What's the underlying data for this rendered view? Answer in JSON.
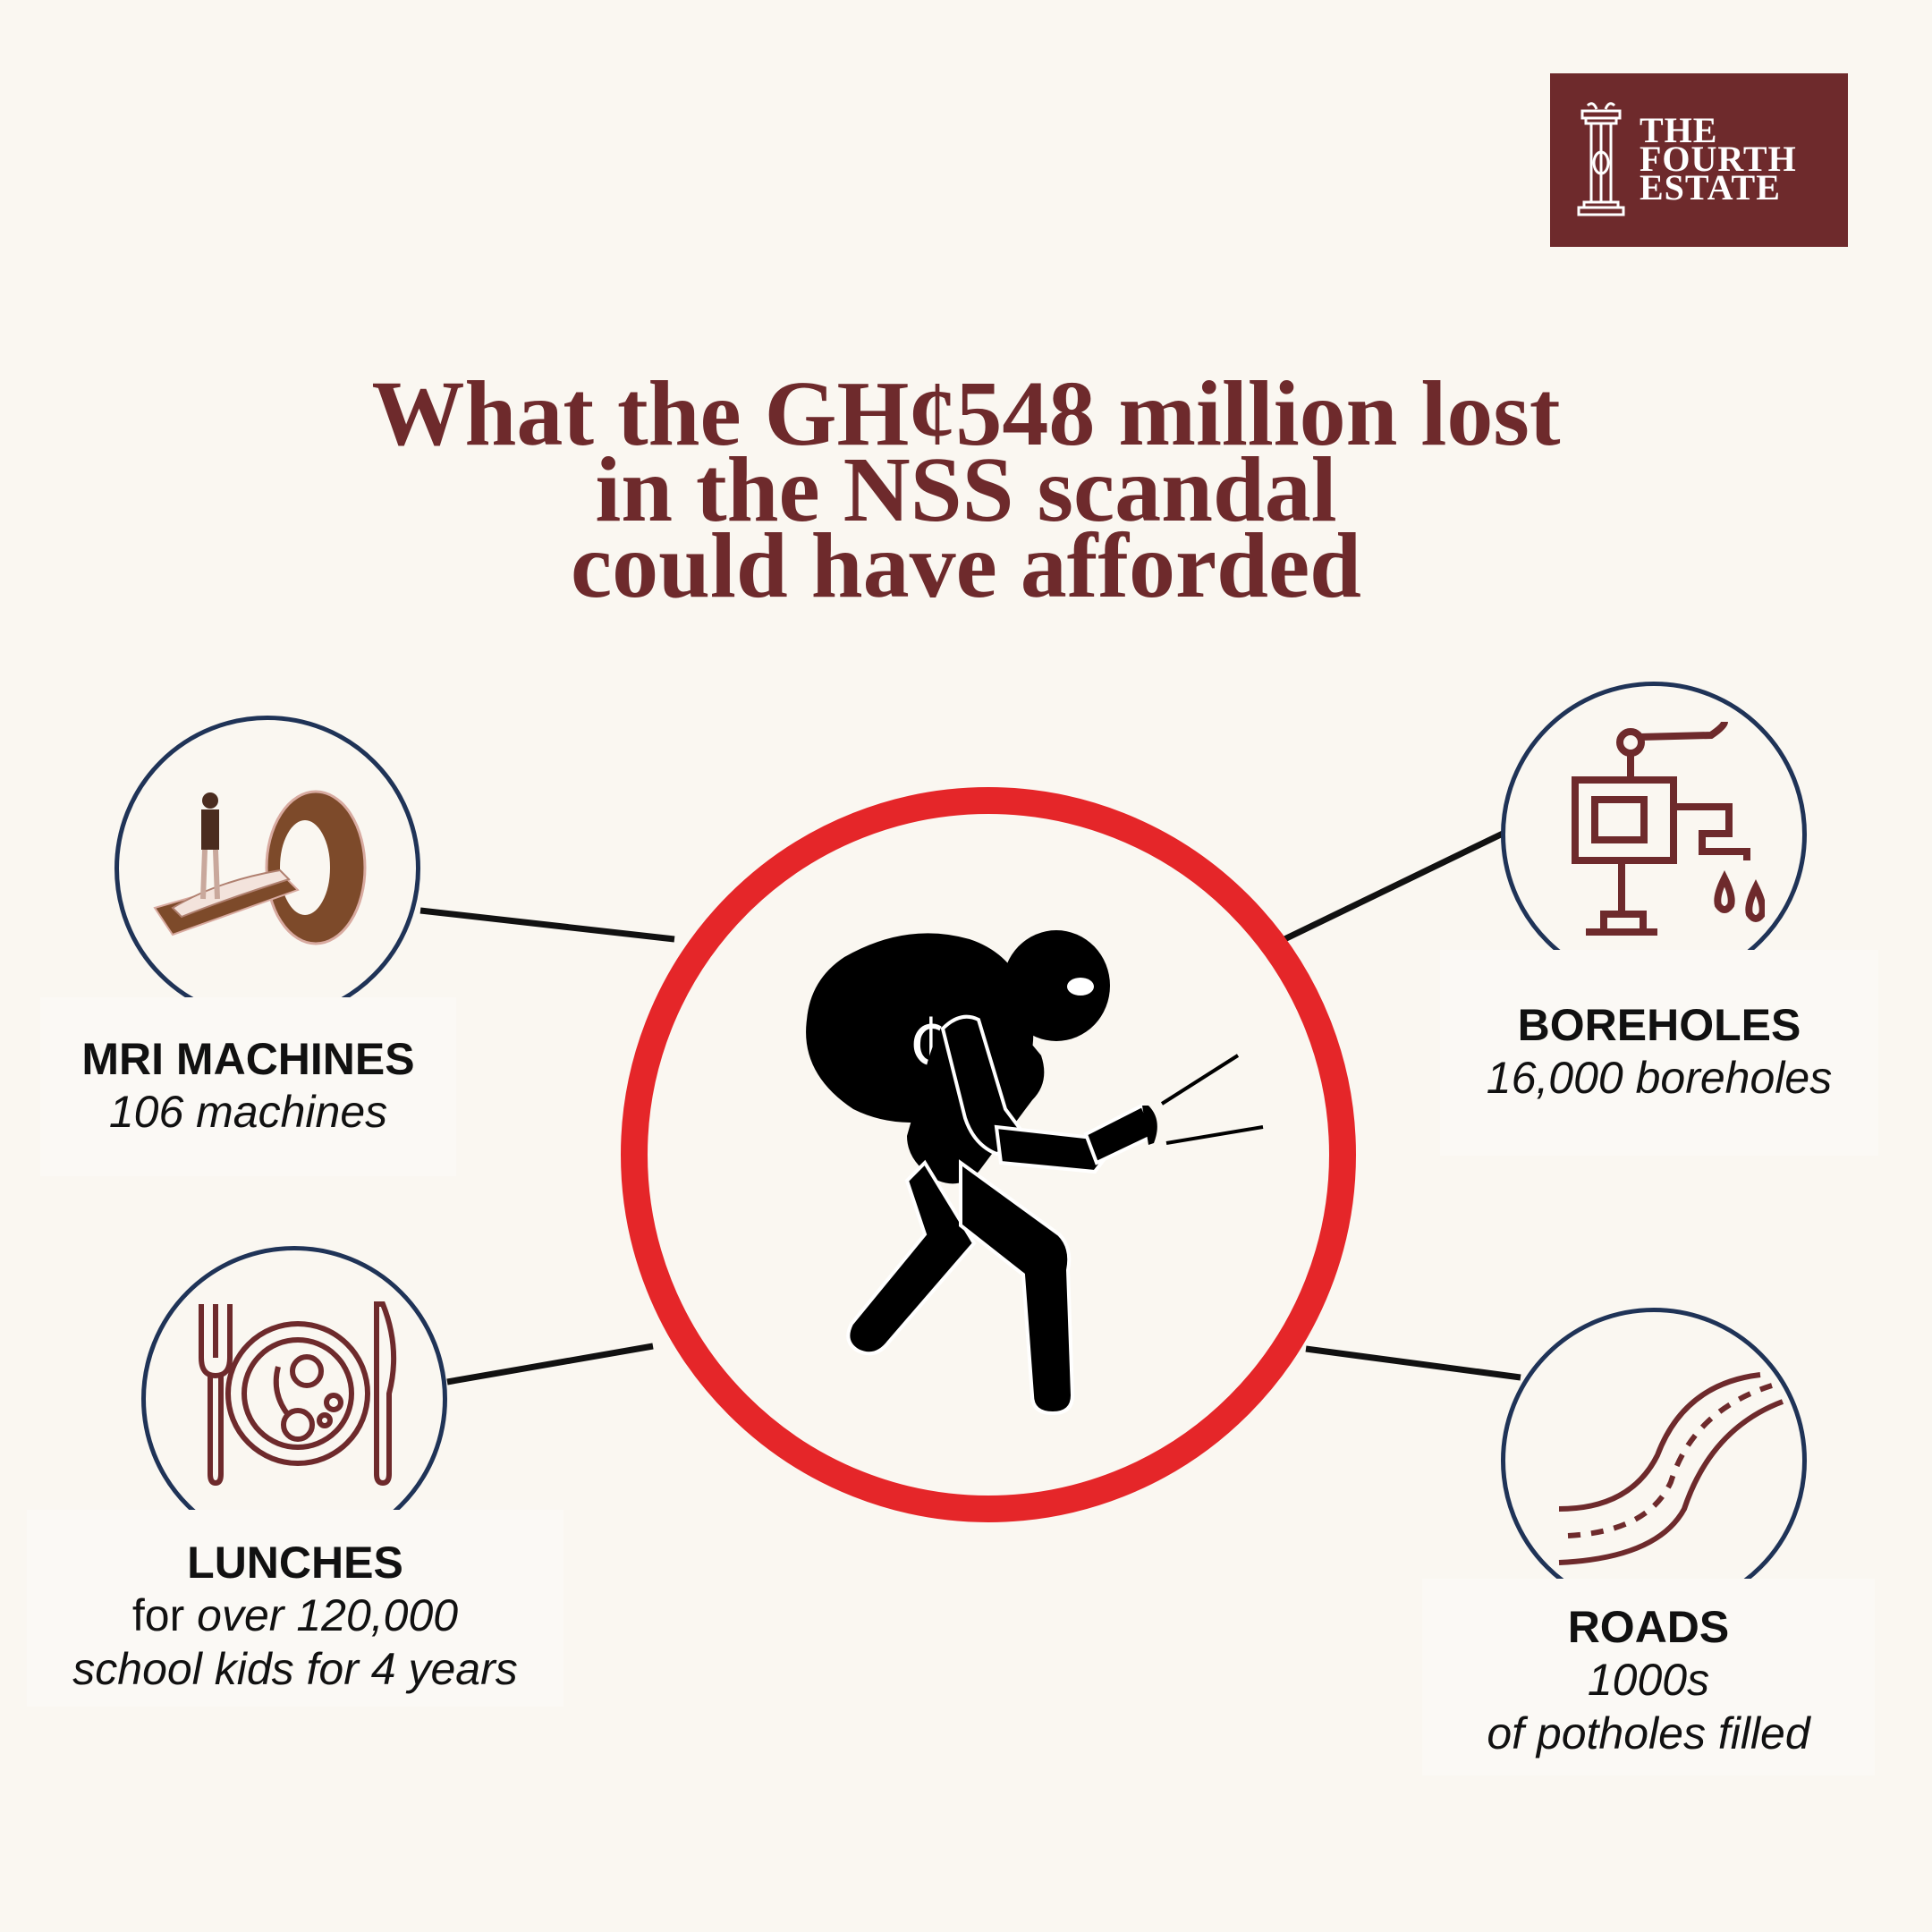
{
  "logo": {
    "line1": "THE",
    "line2": "FOURTH",
    "line3": "ESTATE"
  },
  "title": {
    "line1": "What the GH¢548 million lost",
    "line2": "in the NSS scandal",
    "line3": "could have afforded"
  },
  "center": {
    "icon": "thief-with-money-bag-icon",
    "bag_symbol": "₵"
  },
  "items": {
    "mri": {
      "icon": "mri-scanner-icon",
      "heading": "MRI MACHINES",
      "detail": "106 machines"
    },
    "lunches": {
      "icon": "plate-fork-knife-icon",
      "heading": "LUNCHES",
      "detail_plain": "for",
      "detail_italic": "over 120,000",
      "detail_line2": "school kids for 4 years"
    },
    "boreholes": {
      "icon": "water-pump-icon",
      "heading": "BOREHOLES",
      "detail": "16,000 boreholes"
    },
    "roads": {
      "icon": "winding-road-icon",
      "heading": "ROADS",
      "detail_line1": "1000s",
      "detail_line2": "of potholes filled"
    }
  },
  "colors": {
    "brand_maroon": "#6e2a2c",
    "ring_red": "#e52629",
    "circle_navy": "#1f3357",
    "background": "#faf7f1"
  }
}
